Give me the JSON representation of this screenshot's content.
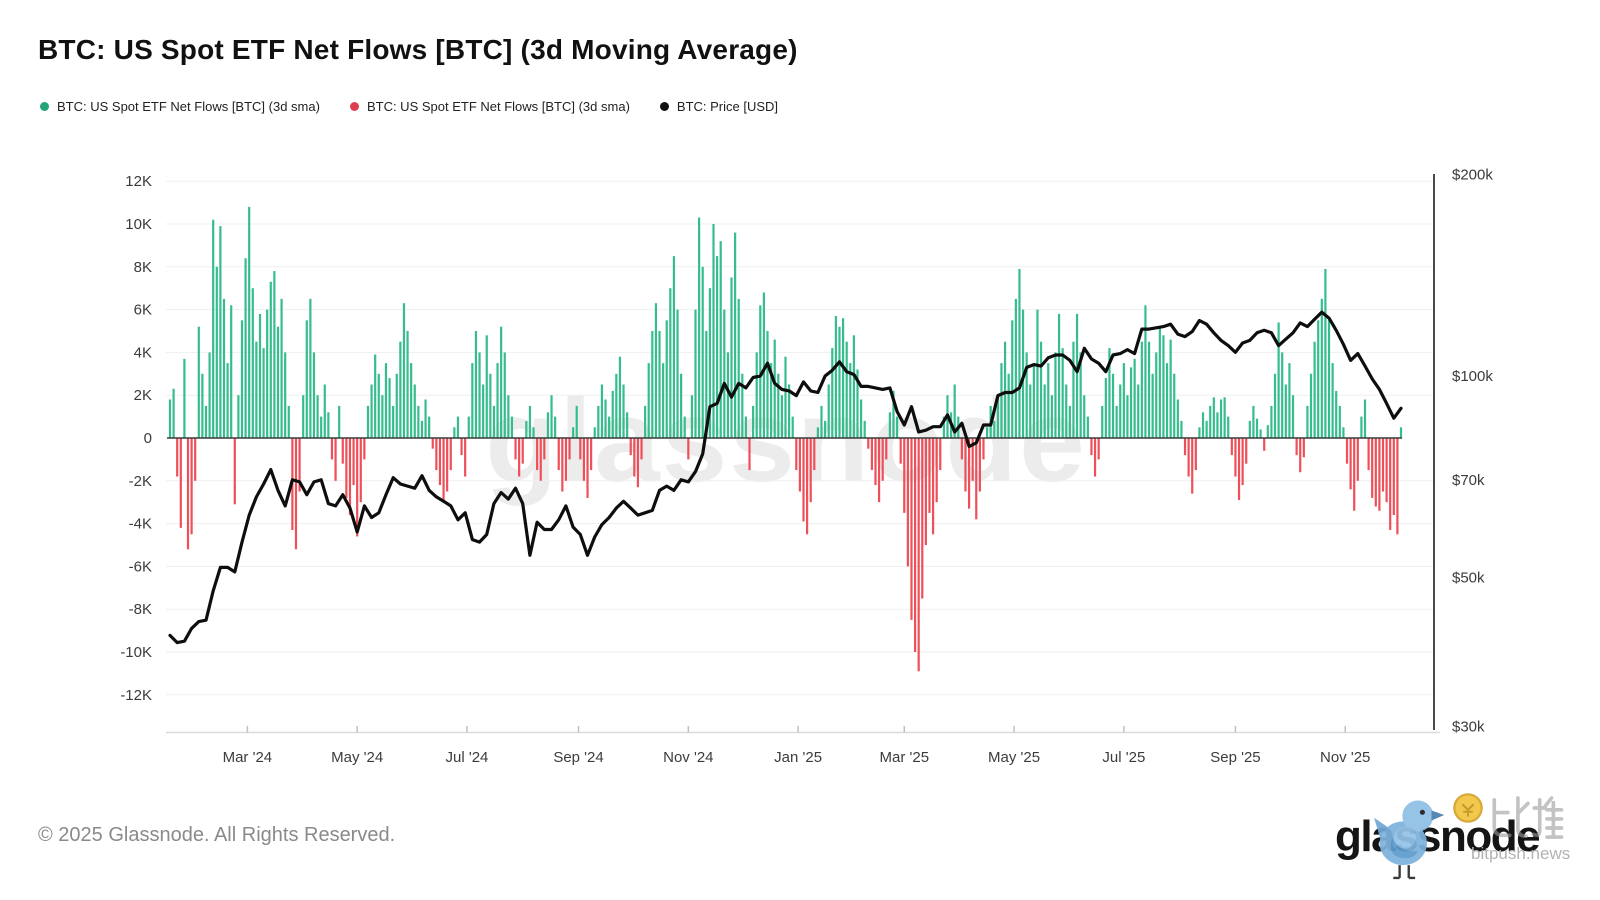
{
  "header": {
    "title": "BTC: US Spot ETF Net Flows [BTC] (3d Moving Average)"
  },
  "legend": {
    "items": [
      {
        "label": "BTC: US Spot ETF Net Flows [BTC] (3d sma)",
        "color": "#23a577",
        "series": "inflow"
      },
      {
        "label": "BTC: US Spot ETF Net Flows [BTC] (3d sma)",
        "color": "#dc4050",
        "series": "outflow"
      },
      {
        "label": "BTC: Price [USD]",
        "color": "#111111",
        "series": "price"
      }
    ]
  },
  "watermark": {
    "text": "glassnode"
  },
  "footer": {
    "copyright": "© 2025 Glassnode. All Rights Reserved.",
    "brand_wordmark": "glassnode",
    "bitpush_cn": "比推",
    "bitpush_text": "bitpush.news"
  },
  "chart_data": {
    "type": "combo",
    "series_types": {
      "flows": "bar",
      "price": "line"
    },
    "title": "BTC: US Spot ETF Net Flows [BTC] (3d Moving Average)",
    "x_start_date": "2024-01-18",
    "x_end_date": "2025-12-02",
    "total_days": 684,
    "grid": "horizontal-only",
    "x_ticks": [
      {
        "label": "Mar '24",
        "day": 43
      },
      {
        "label": "May '24",
        "day": 104
      },
      {
        "label": "Jul '24",
        "day": 165
      },
      {
        "label": "Sep '24",
        "day": 227
      },
      {
        "label": "Nov '24",
        "day": 288
      },
      {
        "label": "Jan '25",
        "day": 349
      },
      {
        "label": "Mar '25",
        "day": 408
      },
      {
        "label": "May '25",
        "day": 469
      },
      {
        "label": "Jul '25",
        "day": 530
      },
      {
        "label": "Sep '25",
        "day": 592
      },
      {
        "label": "Nov '25",
        "day": 653
      }
    ],
    "left_axis": {
      "unit": "BTC",
      "min": -12000,
      "max": 12000,
      "ticks": [
        {
          "label": "12K",
          "value": 12000
        },
        {
          "label": "10K",
          "value": 10000
        },
        {
          "label": "8K",
          "value": 8000
        },
        {
          "label": "6K",
          "value": 6000
        },
        {
          "label": "4K",
          "value": 4000
        },
        {
          "label": "2K",
          "value": 2000
        },
        {
          "label": "0",
          "value": 0
        },
        {
          "label": "-2K",
          "value": -2000
        },
        {
          "label": "-4K",
          "value": -4000
        },
        {
          "label": "-6K",
          "value": -6000
        },
        {
          "label": "-8K",
          "value": -8000
        },
        {
          "label": "-10K",
          "value": -10000
        },
        {
          "label": "-12K",
          "value": -12000
        }
      ]
    },
    "right_axis": {
      "unit": "USD",
      "scale": "log",
      "ticks": [
        {
          "label": "$200k",
          "value": 200
        },
        {
          "label": "$100k",
          "value": 100
        },
        {
          "label": "$70k",
          "value": 70
        },
        {
          "label": "$50k",
          "value": 50
        },
        {
          "label": "$30k",
          "value": 30
        }
      ]
    },
    "flows": {
      "unit": "BTC",
      "step_days": 2,
      "start_day": 0,
      "values": [
        1800,
        2300,
        -1800,
        -4200,
        3700,
        -5200,
        -4500,
        -2000,
        5200,
        3000,
        1500,
        4000,
        10200,
        8000,
        9900,
        6500,
        3500,
        6200,
        -3100,
        2000,
        5500,
        8400,
        10800,
        7000,
        4500,
        5800,
        4200,
        6000,
        7300,
        7800,
        5200,
        6500,
        4000,
        1500,
        -4300,
        -5200,
        -2500,
        2000,
        5500,
        6500,
        4000,
        2000,
        1000,
        2500,
        1200,
        -1000,
        -2000,
        1500,
        -1200,
        -2800,
        -3600,
        -2200,
        -4600,
        -3000,
        -1000,
        1500,
        2500,
        3900,
        3000,
        2000,
        3500,
        2800,
        1500,
        3000,
        4500,
        6300,
        5000,
        3500,
        2500,
        1500,
        800,
        1800,
        1000,
        -500,
        -1500,
        -2200,
        -3000,
        -2500,
        -1500,
        500,
        1000,
        -800,
        -1800,
        1000,
        3500,
        5000,
        4000,
        2500,
        4800,
        3000,
        1500,
        3500,
        5200,
        4000,
        2000,
        1000,
        -1000,
        -1800,
        -1200,
        800,
        1500,
        500,
        -1500,
        -2000,
        -1000,
        1200,
        2000,
        1000,
        -1500,
        -2500,
        -2000,
        -1000,
        500,
        1500,
        -1000,
        -2000,
        -2800,
        -1500,
        500,
        1500,
        2500,
        1800,
        1000,
        2200,
        3000,
        3800,
        2500,
        1200,
        -800,
        -1800,
        -2300,
        -1000,
        1500,
        3500,
        5000,
        6300,
        5000,
        3500,
        5500,
        7000,
        8500,
        6000,
        3000,
        1000,
        -1000,
        2000,
        6000,
        10300,
        8000,
        5000,
        7000,
        10000,
        8500,
        9200,
        6000,
        4000,
        7500,
        9600,
        6500,
        3000,
        1000,
        -1500,
        1500,
        4000,
        6200,
        6800,
        5000,
        3500,
        4600,
        3000,
        2000,
        3800,
        2500,
        1000,
        -1500,
        -2500,
        -3900,
        -4500,
        -3000,
        -1500,
        500,
        1500,
        800,
        2500,
        4200,
        5700,
        5200,
        5600,
        4500,
        3500,
        4800,
        3200,
        1800,
        800,
        -500,
        -1500,
        -2200,
        -3000,
        -2000,
        -1000,
        1200,
        2200,
        1000,
        -1200,
        -3500,
        -6000,
        -8500,
        -10000,
        -10900,
        -7500,
        -5000,
        -3500,
        -4500,
        -3000,
        -1500,
        1000,
        2000,
        1200,
        2500,
        1000,
        -1000,
        -2500,
        -3300,
        -2000,
        -3800,
        -2500,
        -1000,
        500,
        1500,
        800,
        2000,
        3500,
        4500,
        3000,
        5500,
        6500,
        7900,
        6000,
        4000,
        2500,
        3500,
        6000,
        4500,
        2500,
        3500,
        2000,
        4000,
        5800,
        4200,
        2500,
        1500,
        4500,
        5800,
        4000,
        2000,
        1000,
        -800,
        -1800,
        -1000,
        1500,
        2800,
        4200,
        3000,
        1500,
        2500,
        3500,
        2000,
        3300,
        3700,
        2500,
        4500,
        6200,
        4500,
        3000,
        4000,
        5200,
        4800,
        3500,
        4600,
        3000,
        1800,
        800,
        -800,
        -1800,
        -2600,
        -1500,
        500,
        1200,
        800,
        1500,
        1900,
        1200,
        1800,
        1900,
        1000,
        -800,
        -1800,
        -2900,
        -2200,
        -1200,
        800,
        1500,
        900,
        400,
        -600,
        600,
        1500,
        3000,
        5400,
        4000,
        2500,
        3500,
        2000,
        -800,
        -1600,
        -900,
        1500,
        3000,
        4500,
        5500,
        6500,
        7900,
        5500,
        3500,
        2200,
        1500,
        500,
        -1200,
        -2400,
        -3400,
        -2000,
        1000,
        1800,
        -1500,
        -2800,
        -3200,
        -3400,
        -2500,
        -3000,
        -4300,
        -3600,
        -4500,
        500
      ]
    },
    "price": {
      "unit": "USD thousands",
      "step_days": 4,
      "start_day": 0,
      "values": [
        41.0,
        40.0,
        40.2,
        42.0,
        43.0,
        43.2,
        47.8,
        51.8,
        51.8,
        51.0,
        56.5,
        62.0,
        66.0,
        69.0,
        72.5,
        67.5,
        64.0,
        70.0,
        69.5,
        66.5,
        69.5,
        70.0,
        64.5,
        64.0,
        66.5,
        63.5,
        58.5,
        64.0,
        61.5,
        62.5,
        66.5,
        70.5,
        69.0,
        68.5,
        68.0,
        71.0,
        67.5,
        66.0,
        65.0,
        64.0,
        61.0,
        62.5,
        57.0,
        56.5,
        58.0,
        64.5,
        67.0,
        65.5,
        68.0,
        64.5,
        54.0,
        60.5,
        59.0,
        59.0,
        61.0,
        64.0,
        59.5,
        58.0,
        54.0,
        57.5,
        60.0,
        61.5,
        63.5,
        65.0,
        63.5,
        62.0,
        62.5,
        63.0,
        67.5,
        68.5,
        67.5,
        70.0,
        69.5,
        72.0,
        76.5,
        90.0,
        91.0,
        97.5,
        93.0,
        97.5,
        96.0,
        99.5,
        100.0,
        104.5,
        97.5,
        95.5,
        95.0,
        93.5,
        98.0,
        95.0,
        94.5,
        100.0,
        102.0,
        105.0,
        101.5,
        100.5,
        96.5,
        96.5,
        96.0,
        95.5,
        96.0,
        88.5,
        84.5,
        90.0,
        82.5,
        83.0,
        84.0,
        84.0,
        87.5,
        82.5,
        85.0,
        78.5,
        79.5,
        84.5,
        84.5,
        93.5,
        94.5,
        94.5,
        96.0,
        103.0,
        104.0,
        103.5,
        106.5,
        107.5,
        107.5,
        105.5,
        101.5,
        110.0,
        106.0,
        104.5,
        101.5,
        107.5,
        108.0,
        109.5,
        108.0,
        117.5,
        117.5,
        118.0,
        118.5,
        119.5,
        115.5,
        114.5,
        116.5,
        121.0,
        119.5,
        116.0,
        113.0,
        111.0,
        108.5,
        112.0,
        113.0,
        116.0,
        117.0,
        116.0,
        111.0,
        113.5,
        116.0,
        120.0,
        118.5,
        121.5,
        124.5,
        122.0,
        117.0,
        111.5,
        105.5,
        108.0,
        103.5,
        99.0,
        95.5,
        91.0,
        86.5,
        89.5
      ]
    },
    "colors": {
      "inflow": "#36bd8d",
      "outflow": "#ee4f59",
      "price": "#0e0e0e"
    }
  }
}
